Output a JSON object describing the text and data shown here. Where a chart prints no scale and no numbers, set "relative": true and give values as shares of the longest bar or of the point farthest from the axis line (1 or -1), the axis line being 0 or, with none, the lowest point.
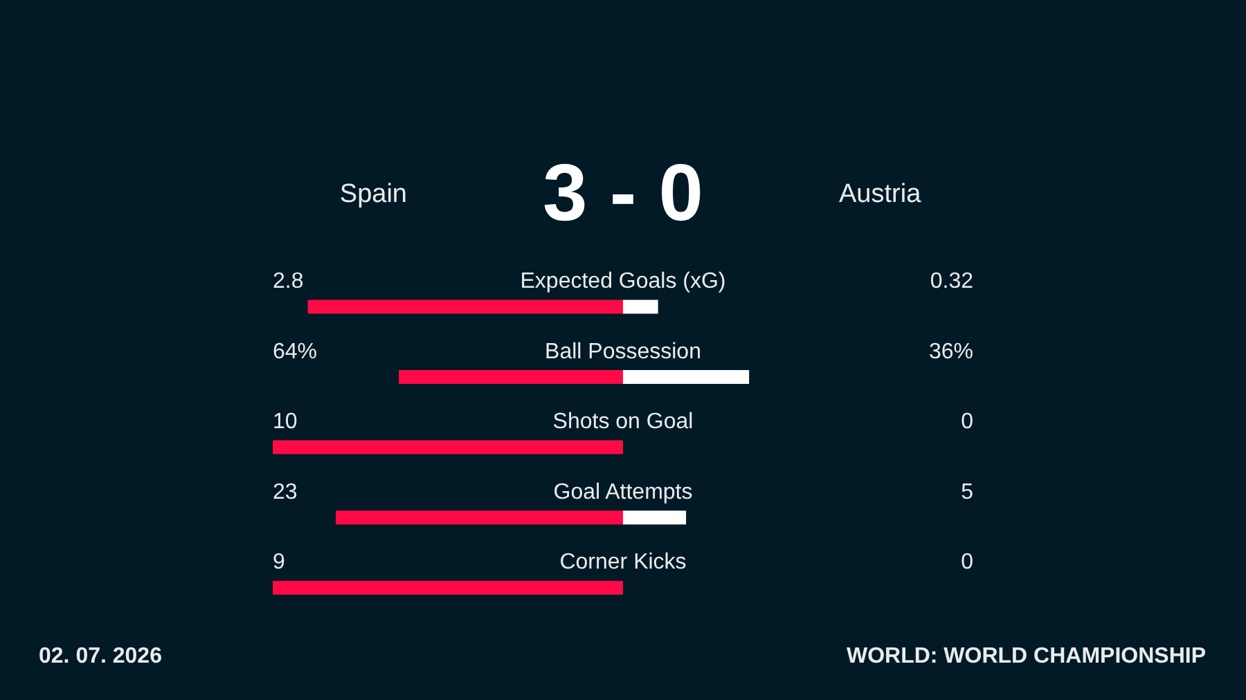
{
  "chart_data": {
    "type": "bar",
    "orientation": "horizontal",
    "stacked": true,
    "relative": true,
    "categories": [
      "Expected Goals (xG)",
      "Ball Possession",
      "Shots on Goal",
      "Goal Attempts",
      "Corner Kicks"
    ],
    "series": [
      {
        "name": "Spain",
        "color": "#ff0a46",
        "values": [
          -0.9,
          -0.64,
          -1,
          -0.82,
          -1
        ]
      },
      {
        "name": "Austria",
        "color": "#ffffff",
        "values": [
          0.1,
          0.36,
          0,
          0.18,
          0
        ]
      }
    ],
    "annotations": [
      "3 - 0",
      "2.8",
      "0.32",
      "64%",
      "36%",
      "10",
      "0",
      "23",
      "5",
      "9",
      "0",
      "02. 07. 2026",
      "WORLD: WORLD CHAMPIONSHIP"
    ]
  }
}
